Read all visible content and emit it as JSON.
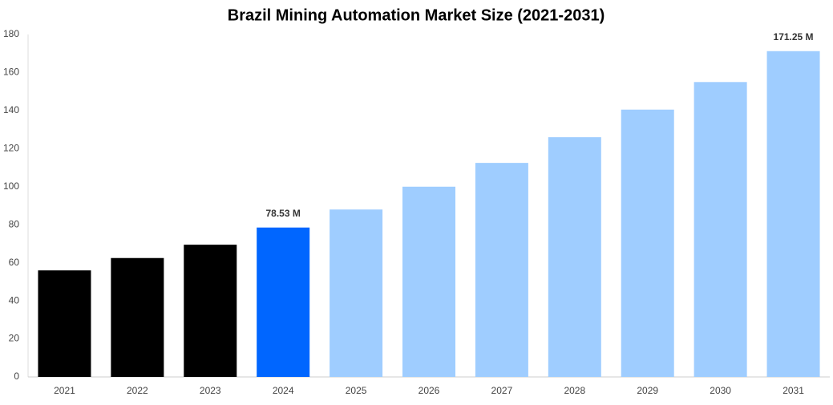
{
  "chart_data": {
    "type": "bar",
    "title": "Brazil Mining Automation Market Size (2021-2031)",
    "categories": [
      "2021",
      "2022",
      "2023",
      "2024",
      "2025",
      "2026",
      "2027",
      "2028",
      "2029",
      "2030",
      "2031"
    ],
    "values": [
      56,
      62.5,
      69.5,
      78.53,
      88,
      100,
      112.5,
      126,
      140.5,
      155,
      171.25
    ],
    "value_labels": [
      null,
      null,
      null,
      "78.53 M",
      null,
      null,
      null,
      null,
      null,
      null,
      "171.25 M"
    ],
    "colors": [
      "#000000",
      "#000000",
      "#000000",
      "#0066ff",
      "#9fcdff",
      "#9fcdff",
      "#9fcdff",
      "#9fcdff",
      "#9fcdff",
      "#9fcdff",
      "#9fcdff"
    ],
    "ylim": [
      0,
      180
    ],
    "yticks": [
      0,
      20,
      40,
      60,
      80,
      100,
      120,
      140,
      160,
      180
    ],
    "grid": false
  }
}
